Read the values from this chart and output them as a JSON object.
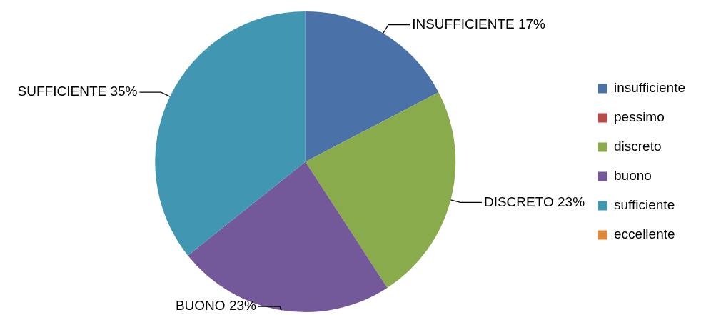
{
  "chart_data": {
    "type": "pie",
    "categories": [
      "insufficiente",
      "pessimo",
      "discreto",
      "buono",
      "sufficiente",
      "eccellente"
    ],
    "values": [
      17,
      0,
      23,
      23,
      35,
      0
    ],
    "colors": [
      "#4a72a8",
      "#b84a47",
      "#8aab4b",
      "#73589a",
      "#4197b2",
      "#e0883a"
    ],
    "value_labels": [
      "INSUFFICIENTE 17%",
      null,
      "DISCRETO 23%",
      "BUONO 23%",
      "SUFFICIENTE 35%",
      null
    ],
    "legend": "right"
  }
}
